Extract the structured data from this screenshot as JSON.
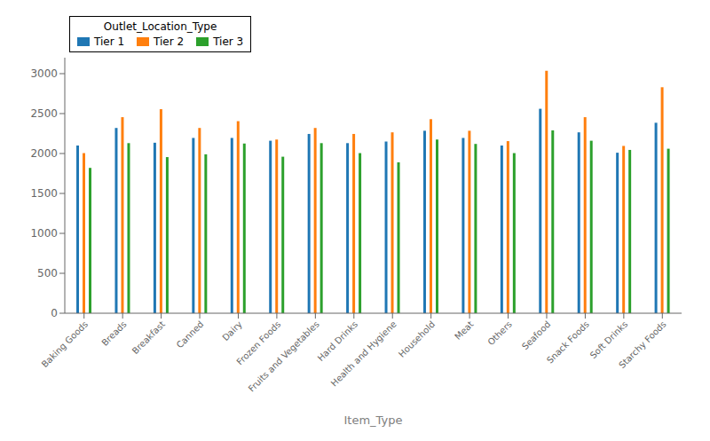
{
  "chart_data": {
    "type": "bar",
    "categories": [
      "Baking Goods",
      "Breads",
      "Breakfast",
      "Canned",
      "Dairy",
      "Frozen Foods",
      "Fruits and Vegetables",
      "Hard Drinks",
      "Health and Hygiene",
      "Household",
      "Meat",
      "Others",
      "Seafood",
      "Snack Foods",
      "Soft Drinks",
      "Starchy Foods"
    ],
    "series": [
      {
        "name": "Tier 1",
        "color": "#1f77b4",
        "values": [
          2100,
          2320,
          2135,
          2195,
          2195,
          2160,
          2245,
          2130,
          2150,
          2285,
          2195,
          2100,
          2560,
          2265,
          2010,
          2385
        ]
      },
      {
        "name": "Tier 2",
        "color": "#ff7f0e",
        "values": [
          2005,
          2455,
          2555,
          2320,
          2405,
          2175,
          2320,
          2245,
          2265,
          2430,
          2285,
          2155,
          3035,
          2455,
          2095,
          2830
        ]
      },
      {
        "name": "Tier 3",
        "color": "#2ca02c",
        "values": [
          1820,
          2130,
          1955,
          1990,
          2125,
          1960,
          2130,
          2005,
          1890,
          2175,
          2120,
          2005,
          2290,
          2160,
          2045,
          2060
        ]
      }
    ],
    "xlabel": "Item_Type",
    "legend_title": "Outlet_Location_Type",
    "legend": "upper left",
    "ylim": [
      0,
      3200
    ],
    "yticks": [
      0,
      500,
      1000,
      1500,
      2000,
      2500,
      3000
    ],
    "grid": false
  }
}
